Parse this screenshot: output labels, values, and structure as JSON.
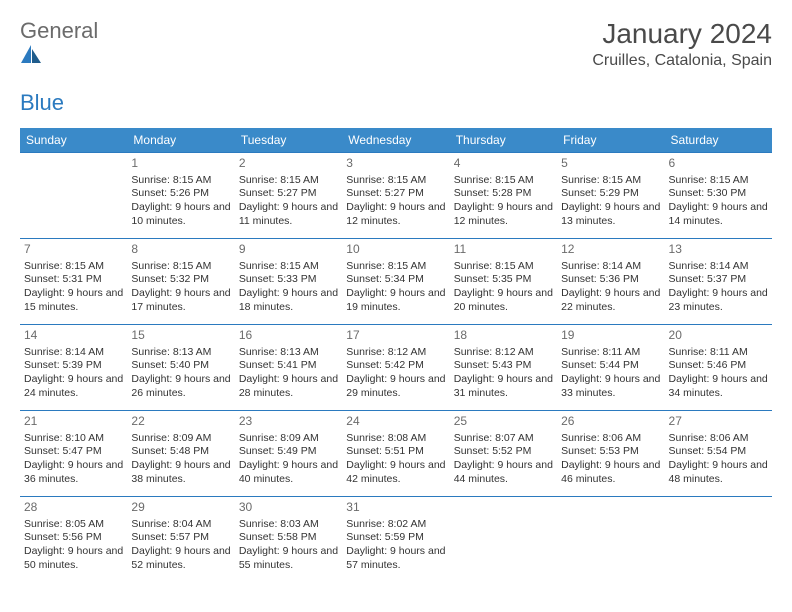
{
  "logo": {
    "text1": "General",
    "text2": "Blue"
  },
  "title": "January 2024",
  "location": "Cruilles, Catalonia, Spain",
  "colors": {
    "header_bg": "#3a8ac9",
    "header_text": "#ffffff",
    "border": "#2b7abf",
    "daynum": "#6b6b6b",
    "body_text": "#333333",
    "logo_gray": "#6b6b6b",
    "logo_blue": "#2b7abf",
    "page_bg": "#ffffff"
  },
  "day_headers": [
    "Sunday",
    "Monday",
    "Tuesday",
    "Wednesday",
    "Thursday",
    "Friday",
    "Saturday"
  ],
  "weeks": [
    [
      null,
      {
        "n": "1",
        "sr": "8:15 AM",
        "ss": "5:26 PM",
        "dl": "9 hours and 10 minutes."
      },
      {
        "n": "2",
        "sr": "8:15 AM",
        "ss": "5:27 PM",
        "dl": "9 hours and 11 minutes."
      },
      {
        "n": "3",
        "sr": "8:15 AM",
        "ss": "5:27 PM",
        "dl": "9 hours and 12 minutes."
      },
      {
        "n": "4",
        "sr": "8:15 AM",
        "ss": "5:28 PM",
        "dl": "9 hours and 12 minutes."
      },
      {
        "n": "5",
        "sr": "8:15 AM",
        "ss": "5:29 PM",
        "dl": "9 hours and 13 minutes."
      },
      {
        "n": "6",
        "sr": "8:15 AM",
        "ss": "5:30 PM",
        "dl": "9 hours and 14 minutes."
      }
    ],
    [
      {
        "n": "7",
        "sr": "8:15 AM",
        "ss": "5:31 PM",
        "dl": "9 hours and 15 minutes."
      },
      {
        "n": "8",
        "sr": "8:15 AM",
        "ss": "5:32 PM",
        "dl": "9 hours and 17 minutes."
      },
      {
        "n": "9",
        "sr": "8:15 AM",
        "ss": "5:33 PM",
        "dl": "9 hours and 18 minutes."
      },
      {
        "n": "10",
        "sr": "8:15 AM",
        "ss": "5:34 PM",
        "dl": "9 hours and 19 minutes."
      },
      {
        "n": "11",
        "sr": "8:15 AM",
        "ss": "5:35 PM",
        "dl": "9 hours and 20 minutes."
      },
      {
        "n": "12",
        "sr": "8:14 AM",
        "ss": "5:36 PM",
        "dl": "9 hours and 22 minutes."
      },
      {
        "n": "13",
        "sr": "8:14 AM",
        "ss": "5:37 PM",
        "dl": "9 hours and 23 minutes."
      }
    ],
    [
      {
        "n": "14",
        "sr": "8:14 AM",
        "ss": "5:39 PM",
        "dl": "9 hours and 24 minutes."
      },
      {
        "n": "15",
        "sr": "8:13 AM",
        "ss": "5:40 PM",
        "dl": "9 hours and 26 minutes."
      },
      {
        "n": "16",
        "sr": "8:13 AM",
        "ss": "5:41 PM",
        "dl": "9 hours and 28 minutes."
      },
      {
        "n": "17",
        "sr": "8:12 AM",
        "ss": "5:42 PM",
        "dl": "9 hours and 29 minutes."
      },
      {
        "n": "18",
        "sr": "8:12 AM",
        "ss": "5:43 PM",
        "dl": "9 hours and 31 minutes."
      },
      {
        "n": "19",
        "sr": "8:11 AM",
        "ss": "5:44 PM",
        "dl": "9 hours and 33 minutes."
      },
      {
        "n": "20",
        "sr": "8:11 AM",
        "ss": "5:46 PM",
        "dl": "9 hours and 34 minutes."
      }
    ],
    [
      {
        "n": "21",
        "sr": "8:10 AM",
        "ss": "5:47 PM",
        "dl": "9 hours and 36 minutes."
      },
      {
        "n": "22",
        "sr": "8:09 AM",
        "ss": "5:48 PM",
        "dl": "9 hours and 38 minutes."
      },
      {
        "n": "23",
        "sr": "8:09 AM",
        "ss": "5:49 PM",
        "dl": "9 hours and 40 minutes."
      },
      {
        "n": "24",
        "sr": "8:08 AM",
        "ss": "5:51 PM",
        "dl": "9 hours and 42 minutes."
      },
      {
        "n": "25",
        "sr": "8:07 AM",
        "ss": "5:52 PM",
        "dl": "9 hours and 44 minutes."
      },
      {
        "n": "26",
        "sr": "8:06 AM",
        "ss": "5:53 PM",
        "dl": "9 hours and 46 minutes."
      },
      {
        "n": "27",
        "sr": "8:06 AM",
        "ss": "5:54 PM",
        "dl": "9 hours and 48 minutes."
      }
    ],
    [
      {
        "n": "28",
        "sr": "8:05 AM",
        "ss": "5:56 PM",
        "dl": "9 hours and 50 minutes."
      },
      {
        "n": "29",
        "sr": "8:04 AM",
        "ss": "5:57 PM",
        "dl": "9 hours and 52 minutes."
      },
      {
        "n": "30",
        "sr": "8:03 AM",
        "ss": "5:58 PM",
        "dl": "9 hours and 55 minutes."
      },
      {
        "n": "31",
        "sr": "8:02 AM",
        "ss": "5:59 PM",
        "dl": "9 hours and 57 minutes."
      },
      null,
      null,
      null
    ]
  ],
  "labels": {
    "sunrise": "Sunrise:",
    "sunset": "Sunset:",
    "daylight": "Daylight:"
  }
}
